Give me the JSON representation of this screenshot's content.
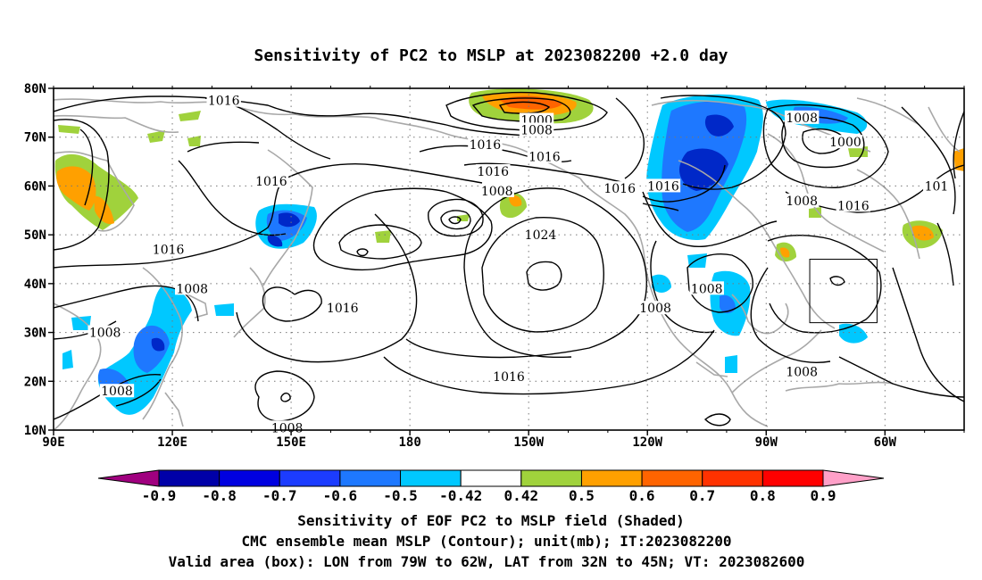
{
  "title": "Sensitivity of PC2 to MSLP at 2023082200 +2.0 day",
  "map": {
    "lon_labels": [
      "90E",
      "120E",
      "150E",
      "180",
      "150W",
      "120W",
      "90W",
      "60W"
    ],
    "lon_values": [
      90,
      120,
      150,
      180,
      210,
      240,
      270,
      300
    ],
    "lat_labels": [
      "80N",
      "70N",
      "60N",
      "50N",
      "40N",
      "30N",
      "20N",
      "10N"
    ],
    "lat_values": [
      80,
      70,
      60,
      50,
      40,
      30,
      20,
      10
    ],
    "lon_range": [
      90,
      320
    ],
    "lat_range": [
      10,
      80
    ],
    "contour_labels": [
      {
        "text": "1016",
        "lon": 133,
        "lat": 77.5
      },
      {
        "text": "1016",
        "lon": 145,
        "lat": 61
      },
      {
        "text": "1016",
        "lon": 119,
        "lat": 47
      },
      {
        "text": "1008",
        "lon": 125,
        "lat": 39
      },
      {
        "text": "1008",
        "lon": 103,
        "lat": 30
      },
      {
        "text": "1008",
        "lon": 106,
        "lat": 18
      },
      {
        "text": "1016",
        "lon": 163,
        "lat": 35
      },
      {
        "text": "1008",
        "lon": 149,
        "lat": 10.5
      },
      {
        "text": "1008",
        "lon": 202,
        "lat": 59
      },
      {
        "text": "1000",
        "lon": 212,
        "lat": 73.5
      },
      {
        "text": "1008",
        "lon": 212,
        "lat": 71.5
      },
      {
        "text": "1016",
        "lon": 199,
        "lat": 68.5
      },
      {
        "text": "1016",
        "lon": 214,
        "lat": 66
      },
      {
        "text": "1016",
        "lon": 201,
        "lat": 63
      },
      {
        "text": "1024",
        "lon": 213,
        "lat": 50
      },
      {
        "text": "1016",
        "lon": 205,
        "lat": 21
      },
      {
        "text": "1016",
        "lon": 233,
        "lat": 59.5
      },
      {
        "text": "1016",
        "lon": 244,
        "lat": 60
      },
      {
        "text": "1008",
        "lon": 242,
        "lat": 35
      },
      {
        "text": "1008",
        "lon": 255,
        "lat": 39
      },
      {
        "text": "1008",
        "lon": 279,
        "lat": 74
      },
      {
        "text": "1008",
        "lon": 279,
        "lat": 57
      },
      {
        "text": "1000",
        "lon": 290,
        "lat": 69
      },
      {
        "text": "1016",
        "lon": 292,
        "lat": 56
      },
      {
        "text": "1008",
        "lon": 279,
        "lat": 22
      },
      {
        "text": "101",
        "lon": 313,
        "lat": 60
      }
    ],
    "valid_box": {
      "lon_min": 281,
      "lon_max": 298,
      "lat_min": 32,
      "lat_max": 45
    }
  },
  "colorbar": {
    "labels": [
      "-0.9",
      "-0.8",
      "-0.7",
      "-0.6",
      "-0.5",
      "-0.42",
      "0.42",
      "0.5",
      "0.6",
      "0.7",
      "0.8",
      "0.9"
    ],
    "colors": [
      "#a0007f",
      "#0000a8",
      "#0000e0",
      "#1c3cff",
      "#1e78ff",
      "#00c8ff",
      "#ffffff",
      "#a0d23c",
      "#ffa000",
      "#ff6400",
      "#ff3200",
      "#ff0000",
      "#ffa0c8"
    ]
  },
  "shading_colors": {
    "neg_deep": "#0028c8",
    "neg_mid": "#1e78ff",
    "neg_light": "#00c8ff",
    "pos_light": "#a0d23c",
    "pos_mid": "#ffa000",
    "pos_strong": "#ff6400"
  },
  "captions": [
    "Sensitivity of EOF PC2 to MSLP field (Shaded)",
    "CMC ensemble mean MSLP (Contour); unit(mb); IT:2023082200",
    "Valid area (box): LON from 79W to 62W, LAT from 32N to 45N; VT: 2023082600"
  ]
}
